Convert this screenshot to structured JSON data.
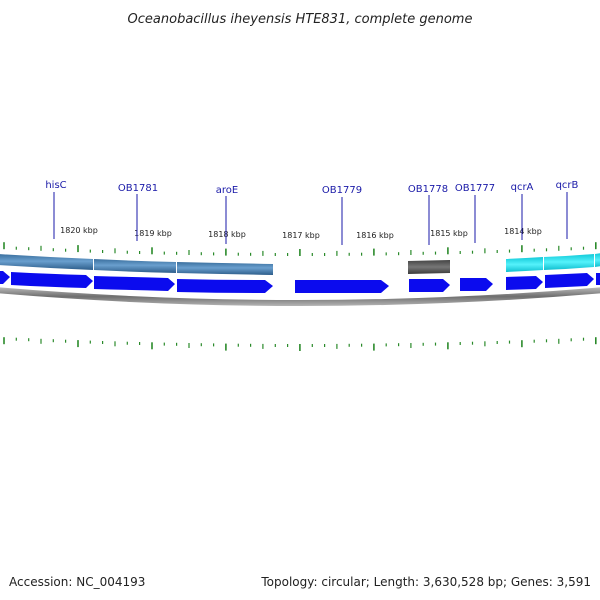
{
  "title": "Oceanobacillus iheyensis HTE831, complete genome",
  "accession": "Accession: NC_004193",
  "summary": "Topology: circular; Length: 3,630,528 bp; Genes: 3,591",
  "tick_labels": [
    "1820 kbp",
    "1819 kbp",
    "1818 kbp",
    "1817 kbp",
    "1816 kbp",
    "1815 kbp",
    "1814 kbp"
  ],
  "genes": [
    "hisC",
    "OB1781",
    "aroE",
    "OB1779",
    "OB1778",
    "OB1777",
    "qcrA",
    "qcrB"
  ],
  "colors": {
    "cds": "#0b0bee",
    "label": "#1a1aa8",
    "tick": "#2a8a2a",
    "backbone": "#777777",
    "feature_blue": "#5a8fc0",
    "feature_gray": "#555555",
    "feature_cyan": "#22e6f2"
  }
}
